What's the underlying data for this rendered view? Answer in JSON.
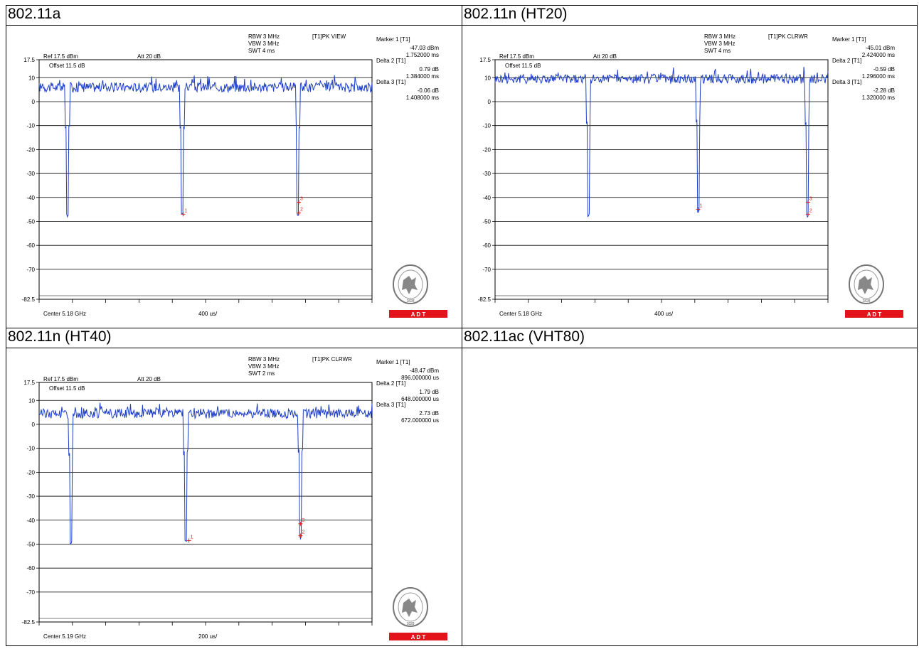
{
  "panels": [
    {
      "title": "802.11a",
      "rbw": "RBW 3 MHz",
      "vbw": "VBW 3 MHz",
      "swt": "SWT 4 ms",
      "trace": "[T1]PK VIEW",
      "ref": "Ref 17.5 dBm",
      "att": "Att  20 dB",
      "offset": "Offset 11.5 dB",
      "center": "Center 5.18 GHz",
      "span": "400 us/",
      "markers": [
        {
          "label": "Marker 1 [T1]",
          "v1": "-47.03 dBm",
          "v2": "1.752000 ms"
        },
        {
          "label": "Delta 2 [T1]",
          "v1": "0.79 dB",
          "v2": "1.384000 ms"
        },
        {
          "label": "Delta 3 [T1]",
          "v1": "-0.06 dB",
          "v2": "1.408000 ms"
        }
      ],
      "logo_text": "BUREAU VERITAS",
      "logo_year": "1828",
      "badge": "A  D  T"
    },
    {
      "title": "802.11n (HT20)",
      "rbw": "RBW 3 MHz",
      "vbw": "VBW 3 MHz",
      "swt": "SWT 4 ms",
      "trace": "[T1]PK CLRWR",
      "ref": "Ref 17.5 dBm",
      "att": "Att  20 dB",
      "offset": "Offset 11.5 dB",
      "center": "Center 5.18 GHz",
      "span": "400 us/",
      "markers": [
        {
          "label": "Marker 1 [T1]",
          "v1": "-45.01 dBm",
          "v2": "2.424000 ms"
        },
        {
          "label": "Delta 2 [T1]",
          "v1": "-0.59 dB",
          "v2": "1.296000 ms"
        },
        {
          "label": "Delta 3 [T1]",
          "v1": "-2.28 dB",
          "v2": "1.320000 ms"
        }
      ],
      "logo_text": "BUREAU VERITAS",
      "logo_year": "1828",
      "badge": "A  D  T"
    },
    {
      "title": "802.11n (HT40)",
      "rbw": "RBW 3 MHz",
      "vbw": "VBW 3 MHz",
      "swt": "SWT 2 ms",
      "trace": "[T1]PK CLRWR",
      "ref": "Ref 17.5 dBm",
      "att": "Att  20 dB",
      "offset": "Offset 11.5 dB",
      "center": "Center 5.19 GHz",
      "span": "200 us/",
      "markers": [
        {
          "label": "Marker 1 [T1]",
          "v1": "-48.47 dBm",
          "v2": "896.000000 us"
        },
        {
          "label": "Delta 2 [T1]",
          "v1": "1.79 dB",
          "v2": "648.000000 us"
        },
        {
          "label": "Delta 3 [T1]",
          "v1": "2.73 dB",
          "v2": "672.000000 us"
        }
      ],
      "logo_text": "BUREAU VERITAS",
      "logo_year": "1828",
      "badge": "A  D  T"
    },
    {
      "title": "802.11ac (VHT80)"
    }
  ],
  "chart_data": [
    {
      "type": "line",
      "ylim": [
        -82.5,
        17.5
      ],
      "xlim": [
        0,
        4
      ],
      "x_unit": "ms",
      "yticks": [
        "17.5",
        "10",
        "0",
        "-10",
        "-20",
        "-30",
        "-40",
        "-50",
        "-60",
        "-70",
        "-82.5"
      ],
      "grid": true,
      "series": [
        {
          "color": "#1f3fc8",
          "baseline": 6,
          "dips": [
            {
              "x": 0.34,
              "depth": -47.5
            },
            {
              "x": 1.72,
              "depth": -46.5
            },
            {
              "x": 3.11,
              "depth": -47.0
            }
          ]
        }
      ],
      "marker_points": [
        {
          "x": 1.73,
          "y": -47.0,
          "label": "1"
        },
        {
          "x": 3.12,
          "y": -46.5,
          "label": "2"
        },
        {
          "x": 3.12,
          "y": -42.0,
          "label": "3"
        }
      ]
    },
    {
      "type": "line",
      "ylim": [
        -82.5,
        17.5
      ],
      "xlim": [
        0,
        4
      ],
      "x_unit": "ms",
      "yticks": [
        "17.5",
        "10",
        "0",
        "-10",
        "-20",
        "-30",
        "-40",
        "-50",
        "-60",
        "-70",
        "-82.5"
      ],
      "grid": true,
      "series": [
        {
          "color": "#1f3fc8",
          "baseline": 9.5,
          "dips": [
            {
              "x": 1.12,
              "depth": -47.5
            },
            {
              "x": 2.44,
              "depth": -45.5
            },
            {
              "x": 3.75,
              "depth": -47.5
            }
          ]
        }
      ],
      "marker_points": [
        {
          "x": 2.44,
          "y": -45.0,
          "label": "1"
        },
        {
          "x": 3.76,
          "y": -47.0,
          "label": "2"
        },
        {
          "x": 3.76,
          "y": -42.0,
          "label": "3"
        }
      ]
    },
    {
      "type": "line",
      "ylim": [
        -82.5,
        17.5
      ],
      "xlim": [
        0,
        2
      ],
      "x_unit": "ms",
      "yticks": [
        "17.5",
        "10",
        "0",
        "-10",
        "-20",
        "-30",
        "-40",
        "-50",
        "-60",
        "-70",
        "-82.5"
      ],
      "grid": true,
      "series": [
        {
          "color": "#1f3fc8",
          "baseline": 4.5,
          "dips": [
            {
              "x": 0.19,
              "depth": -49.5
            },
            {
              "x": 0.88,
              "depth": -48.5
            },
            {
              "x": 1.57,
              "depth": -47.0
            }
          ]
        }
      ],
      "marker_points": [
        {
          "x": 0.9,
          "y": -48.5,
          "label": "1"
        },
        {
          "x": 1.57,
          "y": -46.5,
          "label": "2"
        },
        {
          "x": 1.57,
          "y": -41.5,
          "label": "3"
        }
      ]
    }
  ]
}
